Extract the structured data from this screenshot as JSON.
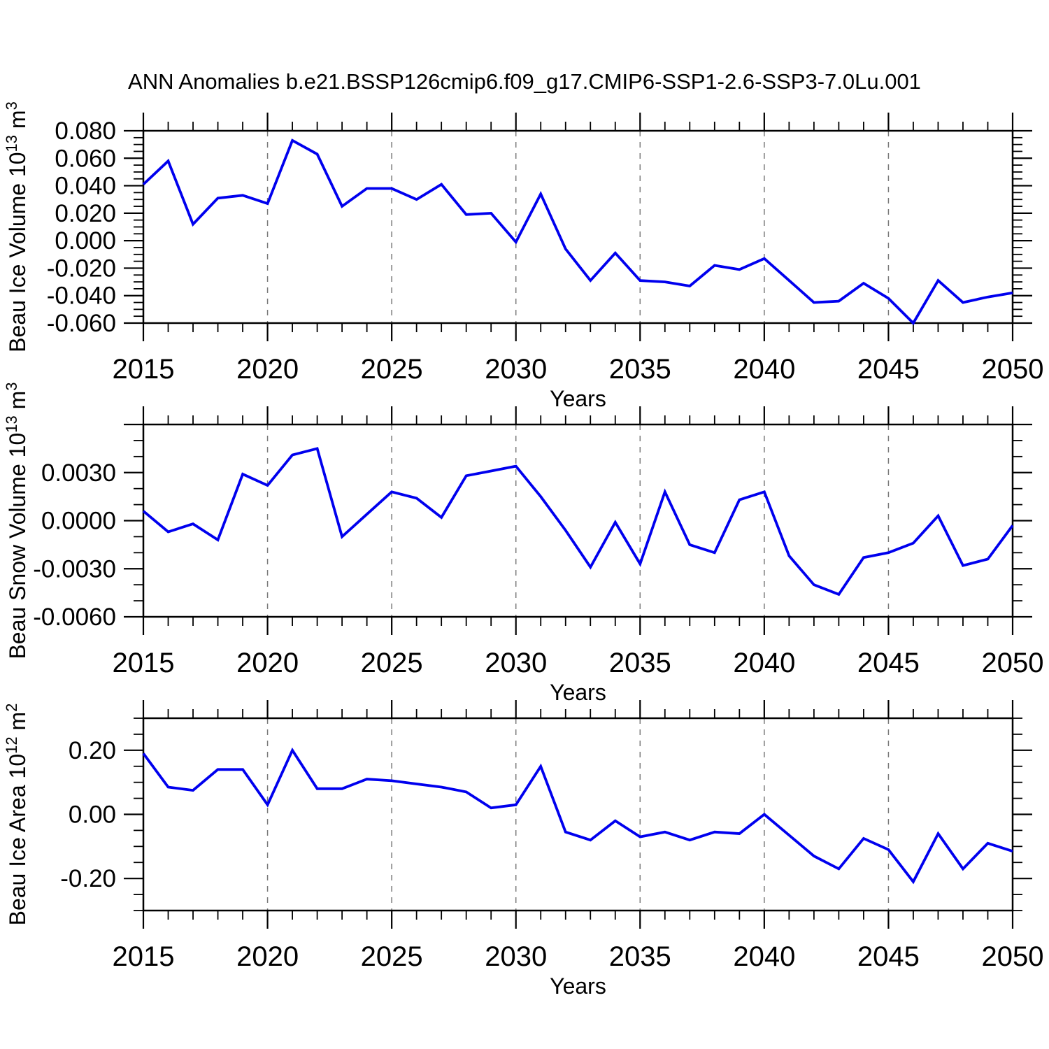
{
  "title": "ANN Anomalies b.e21.BSSP126cmip6.f09_g17.CMIP6-SSP1-2.6-SSP3-7.0Lu.001",
  "xlabel": "Years",
  "colors": {
    "line": "#0000EE",
    "grid": "#7a7a7a",
    "axis": "#000000",
    "background": "#FFFFFF"
  },
  "years": [
    2015,
    2016,
    2017,
    2018,
    2019,
    2020,
    2021,
    2022,
    2023,
    2024,
    2025,
    2026,
    2027,
    2028,
    2029,
    2030,
    2031,
    2032,
    2033,
    2034,
    2035,
    2036,
    2037,
    2038,
    2039,
    2040,
    2041,
    2042,
    2043,
    2044,
    2045,
    2046,
    2047,
    2048,
    2049,
    2050
  ],
  "xtick_years": [
    "2015",
    "2020",
    "2025",
    "2030",
    "2035",
    "2040",
    "2045",
    "2050"
  ],
  "grid_years": [
    2020,
    2025,
    2030,
    2035,
    2040,
    2045
  ],
  "chart_data": [
    {
      "type": "line",
      "ylabel": {
        "text": "Beau Ice Volume",
        "base": "10",
        "exp": "13",
        "unit": "m",
        "unit_exp": "3"
      },
      "xlabel": "Years",
      "ymin": -0.06,
      "ymax": 0.08,
      "minor_step": 0.005,
      "major_step": 0.02,
      "grid": "x-dashed",
      "ytick_labels": [
        {
          "v": 0.08,
          "t": "0.080"
        },
        {
          "v": 0.06,
          "t": "0.060"
        },
        {
          "v": 0.04,
          "t": "0.040"
        },
        {
          "v": 0.02,
          "t": "0.020"
        },
        {
          "v": 0.0,
          "t": "0.000"
        },
        {
          "v": -0.02,
          "t": "-0.020"
        },
        {
          "v": -0.04,
          "t": "-0.040"
        },
        {
          "v": -0.06,
          "t": "-0.060"
        }
      ],
      "values": [
        0.041,
        0.058,
        0.012,
        0.031,
        0.033,
        0.027,
        0.073,
        0.063,
        0.025,
        0.038,
        0.038,
        0.03,
        0.041,
        0.019,
        0.02,
        -0.001,
        0.034,
        -0.006,
        -0.029,
        -0.009,
        -0.029,
        -0.03,
        -0.033,
        -0.018,
        -0.021,
        -0.013,
        -0.029,
        -0.045,
        -0.044,
        -0.031,
        -0.042,
        -0.06,
        -0.029,
        -0.045,
        -0.041,
        -0.038
      ]
    },
    {
      "type": "line",
      "ylabel": {
        "text": "Beau Snow Volume",
        "base": "10",
        "exp": "13",
        "unit": "m",
        "unit_exp": "3"
      },
      "xlabel": "Years",
      "ymin": -0.006,
      "ymax": 0.006,
      "minor_step": 0.001,
      "major_step": 0.003,
      "grid": "x-dashed",
      "ytick_labels": [
        {
          "v": 0.003,
          "t": "0.0030"
        },
        {
          "v": 0.0,
          "t": "0.0000"
        },
        {
          "v": -0.003,
          "t": "-0.0030"
        },
        {
          "v": -0.006,
          "t": "-0.0060"
        }
      ],
      "values": [
        0.0006,
        -0.0007,
        -0.0002,
        -0.0012,
        0.0029,
        0.0022,
        0.0041,
        0.0045,
        -0.001,
        0.0004,
        0.0018,
        0.0014,
        0.0002,
        0.0028,
        0.0031,
        0.0034,
        0.0015,
        -0.0006,
        -0.0029,
        -0.0001,
        -0.0027,
        0.0018,
        -0.0015,
        -0.002,
        0.0013,
        0.0018,
        -0.0022,
        -0.004,
        -0.0046,
        -0.0023,
        -0.002,
        -0.0014,
        0.0003,
        -0.0028,
        -0.0024,
        -0.0003
      ]
    },
    {
      "type": "line",
      "ylabel": {
        "text": "Beau Ice Area",
        "base": "10",
        "exp": "12",
        "unit": "m",
        "unit_exp": "2"
      },
      "xlabel": "Years",
      "ymin": -0.3,
      "ymax": 0.3,
      "minor_step": 0.05,
      "major_step": 0.2,
      "grid": "x-dashed",
      "ytick_labels": [
        {
          "v": 0.2,
          "t": "0.20"
        },
        {
          "v": 0.0,
          "t": "0.00"
        },
        {
          "v": -0.2,
          "t": "-0.20"
        }
      ],
      "values": [
        0.19,
        0.085,
        0.075,
        0.14,
        0.14,
        0.03,
        0.2,
        0.08,
        0.08,
        0.11,
        0.105,
        0.095,
        0.085,
        0.07,
        0.02,
        0.03,
        0.15,
        -0.055,
        -0.08,
        -0.02,
        -0.07,
        -0.055,
        -0.08,
        -0.055,
        -0.06,
        0.0,
        -0.065,
        -0.13,
        -0.17,
        -0.075,
        -0.11,
        -0.21,
        -0.06,
        -0.17,
        -0.09,
        -0.115
      ]
    }
  ]
}
